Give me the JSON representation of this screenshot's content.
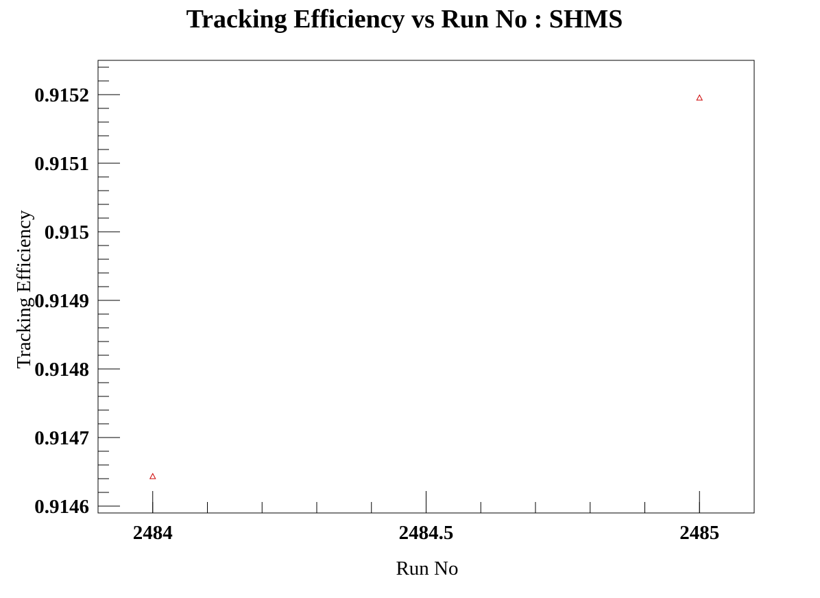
{
  "chart_data": {
    "type": "scatter",
    "title": "Tracking Efficiency vs Run No : SHMS",
    "xlabel": "Run No",
    "ylabel": "Tracking Efficiency",
    "xlim": [
      2483.9,
      2485.1
    ],
    "ylim": [
      0.91459,
      0.91525
    ],
    "x_major_ticks": [
      2484,
      2484.5,
      2485
    ],
    "x_tick_labels": [
      "2484",
      "2484.5",
      "2485"
    ],
    "y_major_ticks": [
      0.9146,
      0.9147,
      0.9148,
      0.9149,
      0.915,
      0.9151,
      0.9152
    ],
    "y_tick_labels": [
      "0.9146",
      "0.9147",
      "0.9148",
      "0.9149",
      "0.915",
      "0.9151",
      "0.9152"
    ],
    "grid": false,
    "legend": "none",
    "series": [
      {
        "marker": "open-triangle",
        "color": "#cc0000",
        "points": [
          {
            "x": 2484,
            "y": 0.914643
          },
          {
            "x": 2485,
            "y": 0.915195
          }
        ]
      }
    ]
  }
}
